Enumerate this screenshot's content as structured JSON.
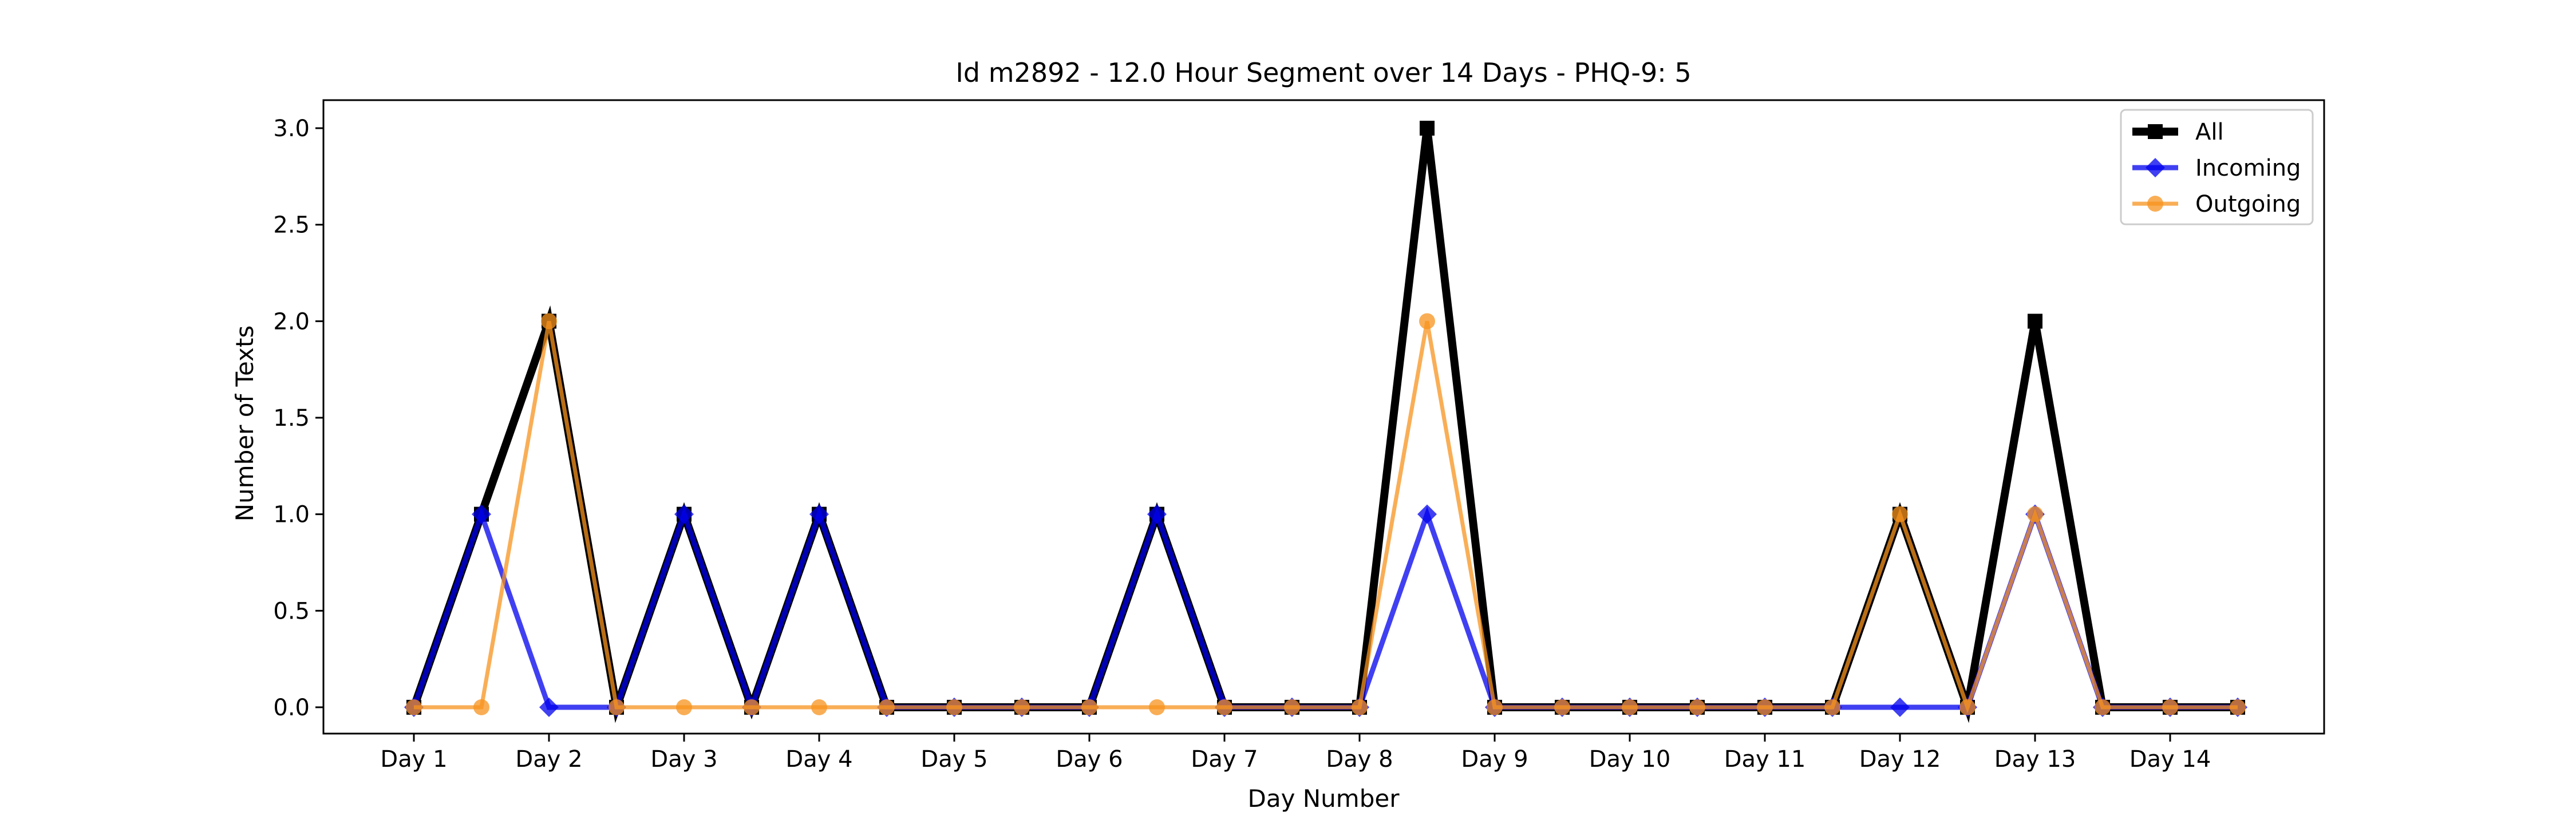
{
  "chart_data": {
    "type": "line",
    "title": "Id m2892 - 12.0 Hour Segment over 14 Days - PHQ-9: 5",
    "xlabel": "Day Number",
    "ylabel": "Number of Texts",
    "ylim": [
      -0.1,
      3.15
    ],
    "yticks": [
      "0.0",
      "0.5",
      "1.0",
      "1.5",
      "2.0",
      "2.5",
      "3.0"
    ],
    "ytick_values": [
      0,
      0.5,
      1.0,
      1.5,
      2.0,
      2.5,
      3.0
    ],
    "xticks": [
      "Day 1",
      "Day 2",
      "Day 3",
      "Day 4",
      "Day 5",
      "Day 6",
      "Day 7",
      "Day 8",
      "Day 9",
      "Day 10",
      "Day 11",
      "Day 12",
      "Day 13",
      "Day 14"
    ],
    "x": [
      1,
      1.5,
      2,
      2.5,
      3,
      3.5,
      4,
      4.5,
      5,
      5.5,
      6,
      6.5,
      7,
      7.5,
      8,
      8.5,
      9,
      9.5,
      10,
      10.5,
      11,
      11.5,
      12,
      12.5,
      13,
      13.5,
      14,
      14.5
    ],
    "legend_position": "top-right",
    "grid": false,
    "series": [
      {
        "name": "All",
        "color": "#000000",
        "marker": "square",
        "values": [
          0,
          1,
          2,
          0,
          1,
          0,
          1,
          0,
          0,
          0,
          0,
          1,
          0,
          0,
          0,
          3,
          0,
          0,
          0,
          0,
          0,
          0,
          1,
          0,
          2,
          0,
          0,
          0
        ]
      },
      {
        "name": "Incoming",
        "color": "#0000ee",
        "marker": "diamond",
        "values": [
          0,
          1,
          0,
          0,
          1,
          0,
          1,
          0,
          0,
          0,
          0,
          1,
          0,
          0,
          0,
          1,
          0,
          0,
          0,
          0,
          0,
          0,
          0,
          0,
          1,
          0,
          0,
          0
        ]
      },
      {
        "name": "Outgoing",
        "color": "#f7931e",
        "marker": "circle",
        "values": [
          0,
          0,
          2,
          0,
          0,
          0,
          0,
          0,
          0,
          0,
          0,
          0,
          0,
          0,
          0,
          2,
          0,
          0,
          0,
          0,
          0,
          0,
          1,
          0,
          1,
          0,
          0,
          0
        ]
      }
    ]
  }
}
